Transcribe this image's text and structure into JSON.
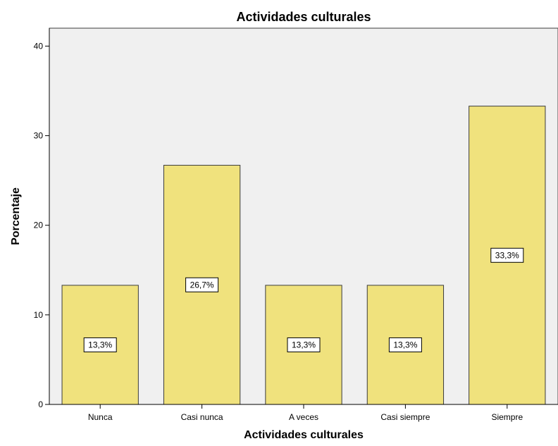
{
  "chart_data": {
    "type": "bar",
    "title": "Actividades culturales",
    "xlabel": "Actividades culturales",
    "ylabel": "Porcentaje",
    "categories": [
      "Nunca",
      "Casi nunca",
      "A veces",
      "Casi siempre",
      "Siempre"
    ],
    "values": [
      13.3,
      26.7,
      13.3,
      13.3,
      33.3
    ],
    "data_labels": [
      "13,3%",
      "26,7%",
      "13,3%",
      "13,3%",
      "33,3%"
    ],
    "ylim": [
      0,
      42
    ],
    "yticks": [
      0,
      10,
      20,
      30,
      40
    ],
    "ytick_labels": [
      "0",
      "10",
      "20",
      "30",
      "40"
    ],
    "grid": false,
    "legend": "none",
    "colors": {
      "plot_background": "#f0f0f0",
      "bar_fill": "#f0e27d",
      "bar_stroke": "#3b3b3b",
      "axis": "#000000",
      "label_box_fill": "#ffffff"
    }
  }
}
